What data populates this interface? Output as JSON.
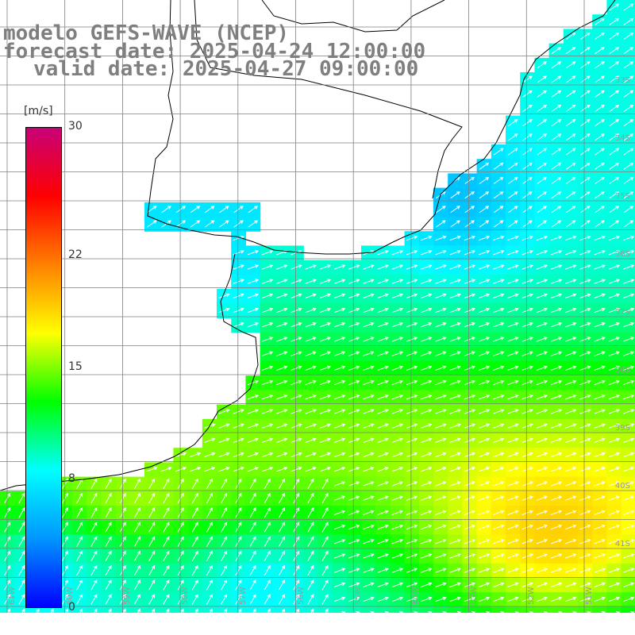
{
  "title": {
    "line1": "modelo GEFS-WAVE (NCEP)",
    "line2": "forecast date: 2025-04-24 12:00:00",
    "line3": "valid date: 2025-04-27 09:00:00"
  },
  "colorbar": {
    "unit": "[m/s]",
    "min": 0,
    "max": 30,
    "ticks": [
      "30",
      "22",
      "15",
      "8",
      "0"
    ],
    "tick_values": [
      30,
      22,
      15,
      8,
      0
    ],
    "stops": [
      "#0000ff",
      "#0096ff",
      "#00ffff",
      "#00ff00",
      "#ffff00",
      "#ff8000",
      "#ff0000",
      "#c80078"
    ]
  },
  "axes": {
    "lat_labels": [
      "33S",
      "34S",
      "35S",
      "36S",
      "37S",
      "38S",
      "39S",
      "40S",
      "41S"
    ],
    "lon_labels": [
      "61W",
      "60W",
      "59W",
      "58W",
      "57W",
      "56W",
      "55W",
      "54W",
      "53W",
      "52W",
      "51W"
    ]
  },
  "colors": {
    "land": "#ffffff",
    "coast": "#000000",
    "grid": "#7f7f7f",
    "arrow": "#ffffff"
  }
}
